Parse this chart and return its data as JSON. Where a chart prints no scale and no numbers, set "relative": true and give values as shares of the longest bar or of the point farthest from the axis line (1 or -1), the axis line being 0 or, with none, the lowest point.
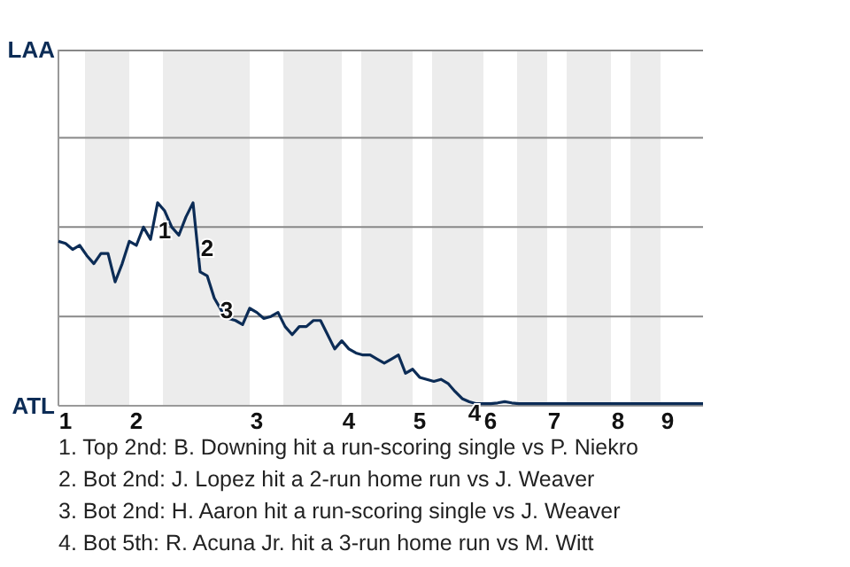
{
  "chart_data": {
    "type": "line",
    "relative": true,
    "categories": [
      null,
      "1",
      null,
      null,
      null,
      null,
      null,
      null,
      null,
      null,
      null,
      "2",
      null,
      null,
      null,
      null,
      null,
      null,
      null,
      null,
      null,
      null,
      null,
      null,
      null,
      null,
      null,
      null,
      "3",
      null,
      null,
      null,
      null,
      null,
      null,
      null,
      null,
      null,
      null,
      null,
      null,
      "4",
      null,
      null,
      null,
      null,
      null,
      null,
      null,
      null,
      null,
      "5",
      null,
      null,
      null,
      null,
      null,
      null,
      null,
      null,
      null,
      "6",
      null,
      null,
      null,
      null,
      null,
      null,
      null,
      null,
      "7",
      null,
      null,
      null,
      null,
      null,
      null,
      null,
      null,
      "8",
      null,
      null,
      null,
      null,
      null,
      null,
      "9",
      null,
      null,
      null,
      null,
      null
    ],
    "marker": "none",
    "line_style": "solid",
    "ref_lines": [
      {
        "axis": "y",
        "value": 0.44,
        "color": "#888888"
      },
      {
        "axis": "y",
        "value": 0.88,
        "color": "#888888"
      },
      {
        "axis": "y",
        "value": 1.32,
        "color": "#888888"
      },
      {
        "axis": "y",
        "value": 1.75,
        "color": "#888888"
      }
    ],
    "series": [
      {
        "color": "#0c2c56",
        "values": [
          0.81,
          0.8,
          0.77,
          0.79,
          0.74,
          0.7,
          0.75,
          0.75,
          0.61,
          0.7,
          0.81,
          0.79,
          0.88,
          0.82,
          1,
          0.96,
          0.88,
          0.84,
          0.93,
          1,
          0.66,
          0.64,
          0.53,
          0.47,
          0.43,
          0.42,
          0.4,
          0.48,
          0.46,
          0.43,
          0.44,
          0.46,
          0.39,
          0.35,
          0.39,
          0.39,
          0.42,
          0.42,
          0.35,
          0.28,
          0.32,
          0.28,
          0.26,
          0.25,
          0.25,
          0.23,
          0.21,
          0.23,
          0.25,
          0.16,
          0.18,
          0.14,
          0.13,
          0.12,
          0.13,
          0.11,
          0.07,
          0.035,
          0.02,
          0.01,
          0.01,
          0.01,
          0.014,
          0.02,
          0.014,
          0.01,
          0.01,
          0.01,
          0.01,
          0.01,
          0.01,
          0.01,
          0.01,
          0.01,
          0.01,
          0.01,
          0.01,
          0.01,
          0.01,
          0.01,
          0.01,
          0.01,
          0.01,
          0.01,
          0.01,
          0.01,
          0.01,
          0.01,
          0.01,
          0.01,
          0.01,
          0.01
        ]
      }
    ],
    "annotations": [
      "LAA",
      "ATL",
      "1",
      "2",
      "3",
      "4",
      "1. Top 2nd: B. Downing hit a run-scoring single vs P. Niekro",
      "2. Bot 2nd: J. Lopez hit a 2-run home run vs J. Weaver",
      "3. Bot 2nd: H. Aaron hit a run-scoring single vs J. Weaver",
      "4. Bot 5th: R. Acuna Jr. hit a 3-run home run vs M. Witt"
    ]
  }
}
